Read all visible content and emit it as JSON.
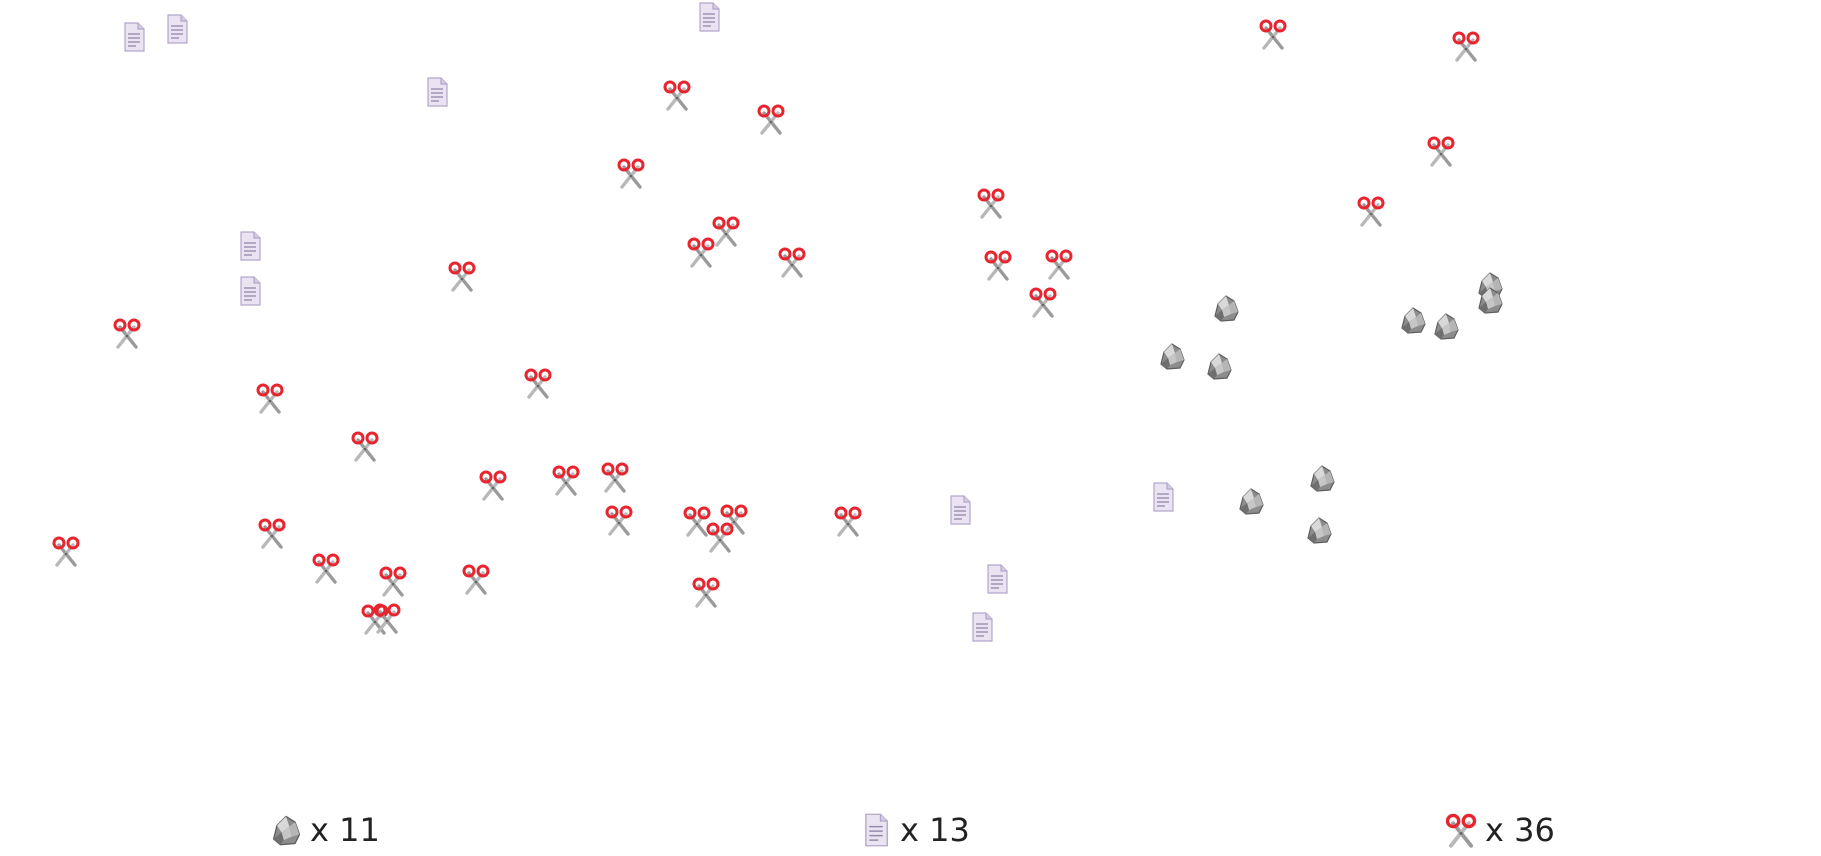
{
  "icons": {
    "rock": "rock-icon",
    "paper": "paper-icon",
    "scissors": "scissors-icon"
  },
  "colors": {
    "background": "#ffffff",
    "scissors_handle": "#e8242f",
    "scissors_blade": "#9a9a9a",
    "rock": "#8c8c8c",
    "paper": "#e9e3f2"
  },
  "tally": {
    "rock": {
      "icon": "rock-icon",
      "label": "x 11"
    },
    "paper": {
      "icon": "paper-icon",
      "label": "x 13"
    },
    "scissors": {
      "icon": "scissors-icon",
      "label": "x 36"
    }
  }
}
